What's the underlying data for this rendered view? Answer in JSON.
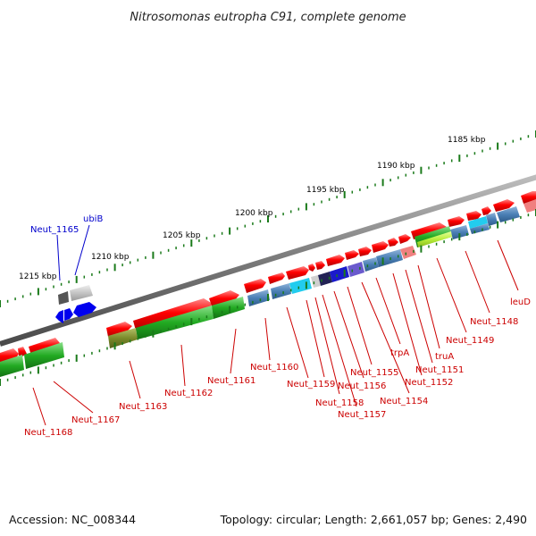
{
  "title": "Nitrosomonas eutropha C91, complete genome",
  "accession": "Accession: NC_008344",
  "summary": "Topology: circular; Length: 2,661,057 bp; Genes: 2,490",
  "colors": {
    "backbone": "#7a7a7a",
    "tick": "#1a7a1a",
    "forward_feature": "#ff0000",
    "label_red": "#cc0000",
    "label_blue": "#0000cc"
  },
  "scale_labels": [
    "1185 kbp",
    "1190 kbp",
    "1195 kbp",
    "1200 kbp",
    "1205 kbp",
    "1210 kbp",
    "1215 kbp"
  ],
  "gene_labels": [
    {
      "text": "Neut_1165",
      "color": "blue"
    },
    {
      "text": "ubiB",
      "color": "blue"
    },
    {
      "text": "leuD",
      "color": "red"
    },
    {
      "text": "Neut_1148",
      "color": "red"
    },
    {
      "text": "Neut_1149",
      "color": "red"
    },
    {
      "text": "truA",
      "color": "red"
    },
    {
      "text": "Neut_1151",
      "color": "red"
    },
    {
      "text": "trpA",
      "color": "red"
    },
    {
      "text": "Neut_1152",
      "color": "red"
    },
    {
      "text": "Neut_1155",
      "color": "red"
    },
    {
      "text": "Neut_1154",
      "color": "red"
    },
    {
      "text": "Neut_1156",
      "color": "red"
    },
    {
      "text": "Neut_1157",
      "color": "red"
    },
    {
      "text": "Neut_1158",
      "color": "red"
    },
    {
      "text": "Neut_1159",
      "color": "red"
    },
    {
      "text": "Neut_1160",
      "color": "red"
    },
    {
      "text": "Neut_1161",
      "color": "red"
    },
    {
      "text": "Neut_1162",
      "color": "red"
    },
    {
      "text": "Neut_1163",
      "color": "red"
    },
    {
      "text": "Neut_1167",
      "color": "red"
    },
    {
      "text": "Neut_1168",
      "color": "red"
    }
  ]
}
